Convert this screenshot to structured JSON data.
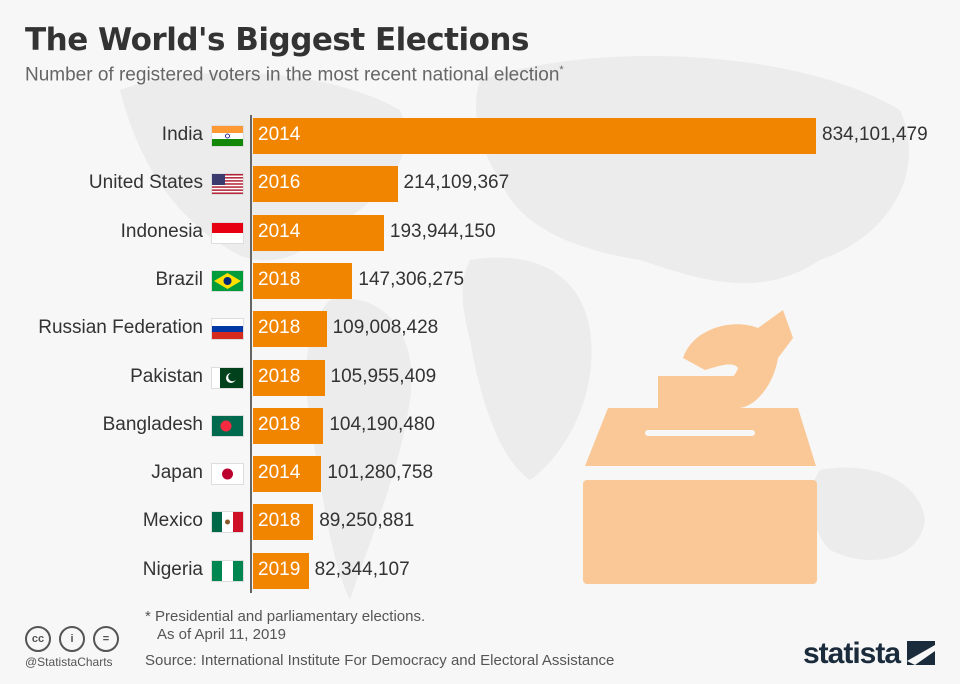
{
  "title": "The World's Biggest Elections",
  "subtitle": "Number of registered voters in the most recent national election",
  "subtitle_mark": "*",
  "colors": {
    "bar": "#f28500",
    "illustration": "#f9c896"
  },
  "chart_data": {
    "type": "bar",
    "orientation": "horizontal",
    "title": "The World's Biggest Elections",
    "categories": [
      "India",
      "United States",
      "Indonesia",
      "Brazil",
      "Russian Federation",
      "Pakistan",
      "Bangladesh",
      "Japan",
      "Mexico",
      "Nigeria"
    ],
    "years": [
      "2014",
      "2016",
      "2014",
      "2018",
      "2018",
      "2018",
      "2018",
      "2014",
      "2018",
      "2019"
    ],
    "values": [
      834101479,
      214109367,
      193944150,
      147306275,
      109008428,
      105955409,
      104190480,
      101280758,
      89250881,
      82344107
    ],
    "value_labels": [
      "834,101,479",
      "214,109,367",
      "193,944,150",
      "147,306,275",
      "109,008,428",
      "105,955,409",
      "104,190,480",
      "101,280,758",
      "89,250,881",
      "82,344,107"
    ],
    "xlim": [
      0,
      834101479
    ],
    "grid": false
  },
  "footer": {
    "note": "* Presidential and parliamentary elections.",
    "as_of": "As of April 11, 2019",
    "source": "Source: International Institute For Democracy and Electoral Assistance",
    "handle": "@StatistaCharts",
    "cc_labels": [
      "cc",
      "i",
      "="
    ],
    "brand": "statista"
  }
}
